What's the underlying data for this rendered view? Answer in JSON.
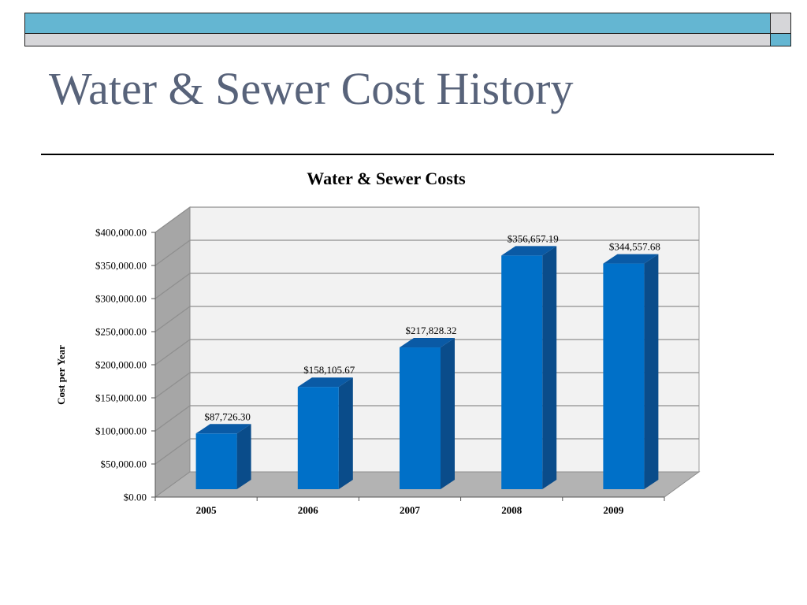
{
  "theme": {
    "title_color": "#58637a",
    "bar_accent": "#64b6d2",
    "bar_secondary": "#d6d6d9",
    "bar_front": "#0070c8",
    "bar_top": "#0a5aa5",
    "bar_side": "#0a4c8a"
  },
  "slide": {
    "title": "Water & Sewer Cost History"
  },
  "chart_data": {
    "type": "bar",
    "title": "Water & Sewer Costs",
    "xlabel": "",
    "ylabel": "Cost per Year",
    "categories": [
      "2005",
      "2006",
      "2007",
      "2008",
      "2009"
    ],
    "values": [
      87726.3,
      158105.67,
      217828.32,
      356657.19,
      344557.68
    ],
    "data_labels": [
      "$87,726.30",
      "$158,105.67",
      "$217,828.32",
      "$356,657.19",
      "$344,557.68"
    ],
    "ylim": [
      0,
      400000
    ],
    "yticks": [
      0,
      50000,
      100000,
      150000,
      200000,
      250000,
      300000,
      350000,
      400000
    ],
    "ytick_labels": [
      "$0.00",
      "$50,000.00",
      "$100,000.00",
      "$150,000.00",
      "$200,000.00",
      "$250,000.00",
      "$300,000.00",
      "$350,000.00",
      "$400,000.00"
    ],
    "grid": true,
    "legend": "none",
    "style": "3d-column"
  }
}
